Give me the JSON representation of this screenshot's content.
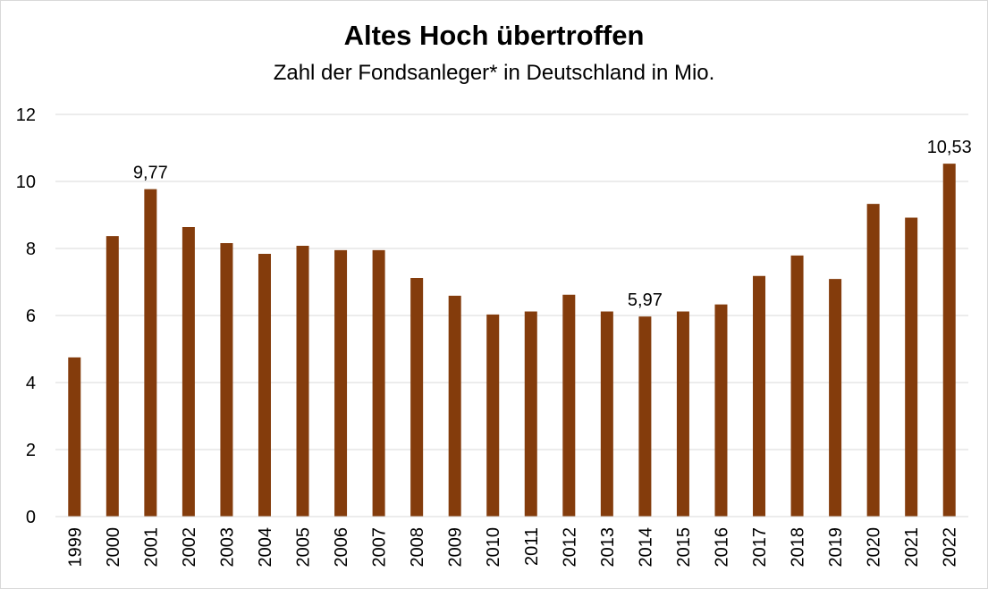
{
  "chart_data": {
    "type": "bar",
    "title": "Altes Hoch übertroffen",
    "subtitle": "Zahl der Fondsanleger* in Deutschland in Mio.",
    "xlabel": "",
    "ylabel": "",
    "categories": [
      "1999",
      "2000",
      "2001",
      "2002",
      "2003",
      "2004",
      "2005",
      "2006",
      "2007",
      "2008",
      "2009",
      "2010",
      "2011",
      "2012",
      "2013",
      "2014",
      "2015",
      "2016",
      "2017",
      "2018",
      "2019",
      "2020",
      "2021",
      "2022"
    ],
    "values": [
      4.75,
      8.37,
      9.77,
      8.64,
      8.16,
      7.84,
      8.08,
      7.95,
      7.95,
      7.12,
      6.59,
      6.03,
      6.12,
      6.62,
      6.12,
      5.97,
      6.12,
      6.33,
      7.18,
      7.79,
      7.09,
      9.33,
      8.92,
      10.53
    ],
    "data_labels": [
      {
        "category": "2001",
        "text": "9,77"
      },
      {
        "category": "2014",
        "text": "5,97"
      },
      {
        "category": "2022",
        "text": "10,53"
      }
    ],
    "yticks": [
      "0",
      "2",
      "4",
      "6",
      "8",
      "10",
      "12"
    ],
    "ylim": [
      0,
      12
    ],
    "grid": true,
    "legend": "none",
    "bar_color": "#843c0c"
  }
}
